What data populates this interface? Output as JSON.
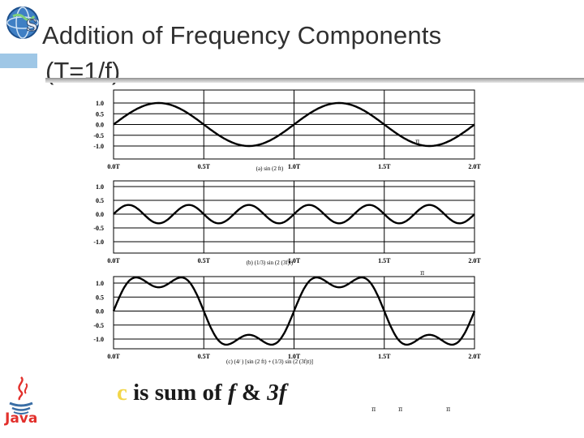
{
  "slide": {
    "title_line1": "Addition of Frequency Components",
    "title_line2": "(T=1/f)",
    "caption_letter": "c",
    "caption_middle": " is sum of ",
    "caption_f": "f",
    "caption_amp": " & ",
    "caption_3f": "3f",
    "java_label": "Java",
    "small_mark": "π",
    "accent_color": "#9fc7e6",
    "caption_letter_color": "#f2d64a",
    "java_color": "#e2302c"
  },
  "chart_data": [
    {
      "type": "line",
      "caption": "(a) sin (2  ft)",
      "x_ticks": [
        "0.0T",
        "0.5T",
        "1.0T",
        "1.5T",
        "2.0T"
      ],
      "y_ticks": [
        "1.0",
        "0.5",
        "0.0",
        "-0.5",
        "-1.0"
      ],
      "xlim": [
        0,
        2
      ],
      "ylim": [
        -1,
        1
      ],
      "grid": true,
      "series": [
        {
          "function": "sin(2πft)",
          "x": [
            0,
            0.25,
            0.5,
            0.75,
            1.0,
            1.25,
            1.5,
            1.75,
            2.0
          ],
          "y": [
            0,
            1,
            0,
            -1,
            0,
            1,
            0,
            -1,
            0
          ]
        }
      ]
    },
    {
      "type": "line",
      "caption": "(b) (1/3) sin (2  (3f)t)",
      "x_ticks": [
        "0.0T",
        "0.5T",
        "1.0T",
        "1.5T",
        "2.0T"
      ],
      "y_ticks": [
        "1.0",
        "0.5",
        "0.0",
        "-0.5",
        "-1.0"
      ],
      "xlim": [
        0,
        2
      ],
      "ylim": [
        -1,
        1
      ],
      "grid": true,
      "series": [
        {
          "function": "(1/3)sin(2π(3f)t)",
          "peak": 0.333,
          "cycles_per_T": 3
        }
      ]
    },
    {
      "type": "line",
      "caption": "(c) (4/ ) [sin (2  ft) + (1/3) sin (2  (3f)t)]",
      "x_ticks": [
        "0.0T",
        "0.5T",
        "1.0T",
        "1.5T",
        "2.0T"
      ],
      "y_ticks": [
        "1.0",
        "0.5",
        "0.0",
        "-0.5",
        "-1.0"
      ],
      "xlim": [
        0,
        2
      ],
      "ylim": [
        -1.2,
        1.2
      ],
      "grid": true,
      "series": [
        {
          "function": "(4/π)[sin(2πft)+(1/3)sin(2π(3f)t)]",
          "peak": 1.13
        }
      ]
    }
  ]
}
